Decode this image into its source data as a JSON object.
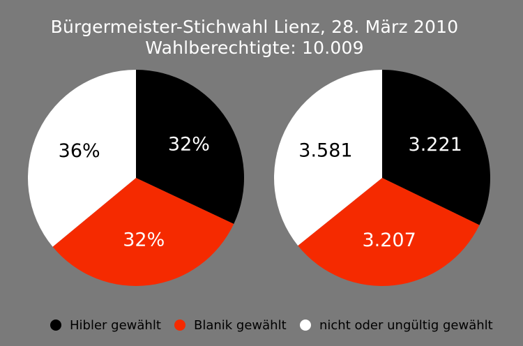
{
  "title": "Bürgermeister-Stichwahl Lienz, 28. März 2010",
  "subtitle": "Wahlberechtigte: 10.009",
  "colors": {
    "background": "#7a7a7a",
    "hibler": "#000000",
    "blanik": "#f52a00",
    "nicht": "#ffffff"
  },
  "chart_data": [
    {
      "type": "pie",
      "slices": [
        {
          "label": "Hibler gewählt",
          "value": 32,
          "display": "32%",
          "color": "#000000",
          "text_color": "#ffffff"
        },
        {
          "label": "Blanik gewählt",
          "value": 32,
          "display": "32%",
          "color": "#f52a00",
          "text_color": "#ffffff"
        },
        {
          "label": "nicht oder ungültig gewählt",
          "value": 36,
          "display": "36%",
          "color": "#ffffff",
          "text_color": "#000000"
        }
      ]
    },
    {
      "type": "pie",
      "slices": [
        {
          "label": "Hibler gewählt",
          "value": 3221,
          "display": "3.221",
          "color": "#000000",
          "text_color": "#ffffff"
        },
        {
          "label": "Blanik gewählt",
          "value": 3207,
          "display": "3.207",
          "color": "#f52a00",
          "text_color": "#ffffff"
        },
        {
          "label": "nicht oder ungültig gewählt",
          "value": 3581,
          "display": "3.581",
          "color": "#ffffff",
          "text_color": "#000000"
        }
      ]
    }
  ],
  "legend": [
    {
      "label": "Hibler gewählt",
      "color": "#000000"
    },
    {
      "label": "Blanik gewählt",
      "color": "#f52a00"
    },
    {
      "label": "nicht oder ungültig gewählt",
      "color": "#ffffff"
    }
  ]
}
